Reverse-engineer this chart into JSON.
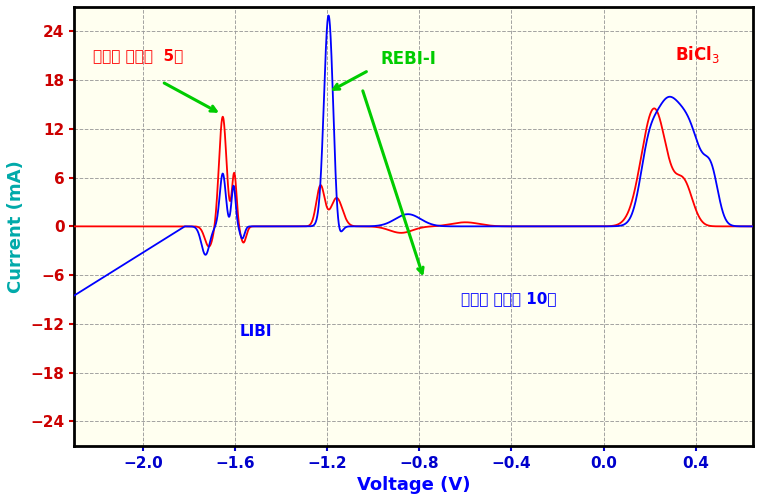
{
  "title": "",
  "xlabel": "Voltage (V)",
  "ylabel": "Current (mA)",
  "xlabel_color": "#0000FF",
  "ylabel_color": "#00AAAA",
  "xlim": [
    -2.3,
    0.65
  ],
  "ylim": [
    -27,
    27
  ],
  "yticks": [
    -24,
    -18,
    -12,
    -6,
    0,
    6,
    12,
    18,
    24
  ],
  "xticks": [
    -2.0,
    -1.6,
    -1.2,
    -0.8,
    -0.4,
    0.0,
    0.4
  ],
  "plot_bg_color": "#FFFFF0",
  "fig_bg_color": "#FFFFFF",
  "grid_color": "#999999",
  "label_5min": "산화제 첨가후  5분",
  "label_10min": "산화제 첨가후 10분",
  "label_REBI": "REBI-I",
  "label_LiBi": "LIBI",
  "color_red": "#FF0000",
  "color_blue": "#0000FF",
  "color_green": "#00CC00",
  "color_ytick": "#CC0000",
  "color_xtick": "#0000CC"
}
